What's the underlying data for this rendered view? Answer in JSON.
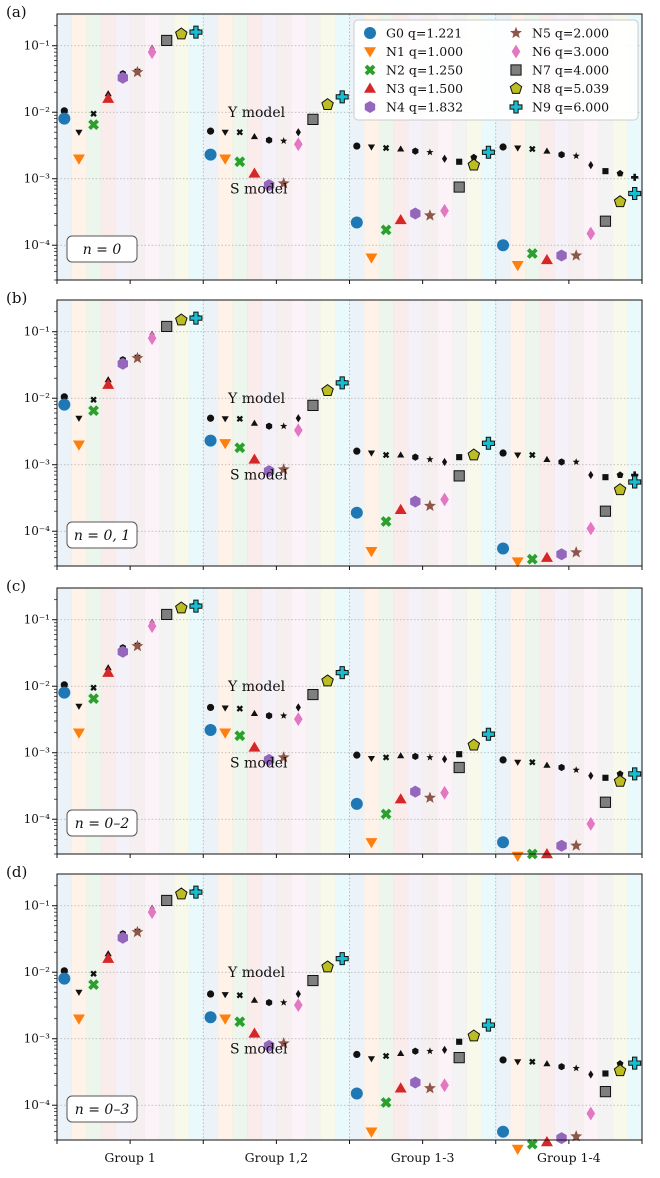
{
  "chart_data": {
    "type": "scatter",
    "y_scale": "log",
    "ylim": [
      3e-05,
      0.3
    ],
    "y_ticks": [
      {
        "value": 0.1,
        "label": "10⁻¹"
      },
      {
        "value": 0.01,
        "label": "10⁻²"
      },
      {
        "value": 0.001,
        "label": "10⁻³"
      },
      {
        "value": 0.0001,
        "label": "10⁻⁴"
      }
    ],
    "groups": [
      "Group 1",
      "Group 1,2",
      "Group 1-3",
      "Group 1-4"
    ],
    "series": [
      {
        "name": "G0 q=1.221",
        "marker": "circle",
        "color": "#1f77b4"
      },
      {
        "name": "N1 q=1.000",
        "marker": "triangle-down",
        "color": "#ff7f0e"
      },
      {
        "name": "N2 q=1.250",
        "marker": "x",
        "color": "#2ca02c"
      },
      {
        "name": "N3 q=1.500",
        "marker": "triangle-up",
        "color": "#d62728"
      },
      {
        "name": "N4 q=1.832",
        "marker": "hexagon",
        "color": "#9467bd"
      },
      {
        "name": "N5 q=2.000",
        "marker": "star",
        "color": "#8c564b"
      },
      {
        "name": "N6 q=3.000",
        "marker": "diamond",
        "color": "#e377c2"
      },
      {
        "name": "N7 q=4.000",
        "marker": "square",
        "color": "#7f7f7f"
      },
      {
        "name": "N8 q=5.039",
        "marker": "pentagon",
        "color": "#bcbd22"
      },
      {
        "name": "N9 q=6.000",
        "marker": "plus",
        "color": "#17becf"
      }
    ],
    "legend_position": "top-right (panel a)",
    "grid": "dotted major y and group separators",
    "annotations": {
      "y_model": "Y model",
      "s_model": "S model"
    },
    "panels": [
      {
        "letter": "(a)",
        "n_label": "n = 0",
        "s_model": [
          [
            0.008,
            0.002,
            0.0065,
            0.016,
            0.033,
            0.04,
            0.08,
            0.12,
            0.15,
            0.16
          ],
          [
            0.0023,
            0.002,
            0.0018,
            0.0012,
            0.0008,
            0.00085,
            0.0033,
            0.0078,
            0.013,
            0.017
          ],
          [
            0.00022,
            6.5e-05,
            0.00017,
            0.00024,
            0.0003,
            0.00028,
            0.00033,
            0.00075,
            0.0016,
            0.0025
          ],
          [
            0.0001,
            5e-05,
            7.5e-05,
            6e-05,
            7e-05,
            7e-05,
            0.00015,
            0.00023,
            0.00045,
            0.0006
          ]
        ],
        "y_model": [
          [
            0.0105,
            0.005,
            0.0095,
            0.019,
            0.038,
            0.043,
            0.09,
            0.125,
            0.155,
            0.17
          ],
          [
            0.0052,
            0.005,
            0.005,
            0.0043,
            0.0038,
            0.0037,
            0.005,
            0.0082,
            0.0135,
            0.018
          ],
          [
            0.0031,
            0.003,
            0.0029,
            0.0028,
            0.0026,
            0.0025,
            0.002,
            0.0018,
            0.0021,
            0.0024
          ],
          [
            0.003,
            0.0029,
            0.0028,
            0.0026,
            0.0023,
            0.0022,
            0.0016,
            0.0013,
            0.0012,
            0.00105
          ]
        ]
      },
      {
        "letter": "(b)",
        "n_label": "n = 0, 1",
        "s_model": [
          [
            0.008,
            0.002,
            0.0065,
            0.016,
            0.033,
            0.04,
            0.08,
            0.12,
            0.15,
            0.16
          ],
          [
            0.0023,
            0.0021,
            0.0018,
            0.0012,
            0.0008,
            0.00085,
            0.0033,
            0.0078,
            0.013,
            0.017
          ],
          [
            0.00019,
            5e-05,
            0.00014,
            0.00021,
            0.00028,
            0.00024,
            0.0003,
            0.00068,
            0.0014,
            0.0021
          ],
          [
            5.5e-05,
            3.5e-05,
            3.8e-05,
            4e-05,
            4.5e-05,
            4.8e-05,
            0.00011,
            0.0002,
            0.00042,
            0.00055
          ]
        ],
        "y_model": [
          [
            0.0105,
            0.005,
            0.0095,
            0.019,
            0.038,
            0.043,
            0.09,
            0.125,
            0.155,
            0.17
          ],
          [
            0.005,
            0.0049,
            0.0049,
            0.0042,
            0.0038,
            0.0038,
            0.005,
            0.0082,
            0.0135,
            0.018
          ],
          [
            0.0016,
            0.0015,
            0.0014,
            0.0014,
            0.0013,
            0.0012,
            0.0011,
            0.0013,
            0.0015,
            0.0022
          ],
          [
            0.0015,
            0.0014,
            0.0014,
            0.0012,
            0.0011,
            0.0011,
            0.0007,
            0.00065,
            0.0007,
            0.0007
          ]
        ]
      },
      {
        "letter": "(c)",
        "n_label": "n = 0–2",
        "s_model": [
          [
            0.008,
            0.002,
            0.0065,
            0.016,
            0.033,
            0.04,
            0.08,
            0.12,
            0.15,
            0.16
          ],
          [
            0.0022,
            0.002,
            0.0018,
            0.0012,
            0.00078,
            0.00085,
            0.0032,
            0.0075,
            0.012,
            0.016
          ],
          [
            0.00017,
            4.5e-05,
            0.00012,
            0.0002,
            0.00026,
            0.00021,
            0.00025,
            0.0006,
            0.0013,
            0.0019
          ],
          [
            4.5e-05,
            2.8e-05,
            3e-05,
            3e-05,
            4e-05,
            4e-05,
            8.5e-05,
            0.00018,
            0.00037,
            0.00048
          ]
        ],
        "y_model": [
          [
            0.0105,
            0.005,
            0.0095,
            0.019,
            0.038,
            0.043,
            0.09,
            0.125,
            0.155,
            0.17
          ],
          [
            0.0048,
            0.0047,
            0.0046,
            0.0039,
            0.0036,
            0.0036,
            0.0048,
            0.008,
            0.013,
            0.017
          ],
          [
            0.00092,
            0.00082,
            0.00085,
            0.0009,
            0.00088,
            0.00085,
            0.0008,
            0.00095,
            0.0013,
            0.0018
          ],
          [
            0.00078,
            0.00072,
            0.00072,
            0.00065,
            0.0006,
            0.00055,
            0.00045,
            0.00042,
            0.00048,
            0.0005
          ]
        ]
      },
      {
        "letter": "(d)",
        "n_label": "n = 0–3",
        "s_model": [
          [
            0.008,
            0.002,
            0.0065,
            0.016,
            0.033,
            0.04,
            0.08,
            0.12,
            0.15,
            0.16
          ],
          [
            0.0021,
            0.002,
            0.0018,
            0.0012,
            0.00078,
            0.00085,
            0.0032,
            0.0075,
            0.012,
            0.016
          ],
          [
            0.00015,
            4e-05,
            0.00011,
            0.00018,
            0.00022,
            0.00018,
            0.0002,
            0.00052,
            0.0011,
            0.0016
          ],
          [
            4e-05,
            2.2e-05,
            2.6e-05,
            2.8e-05,
            3.2e-05,
            3.4e-05,
            7.5e-05,
            0.00016,
            0.00033,
            0.00043
          ]
        ],
        "y_model": [
          [
            0.0105,
            0.005,
            0.0095,
            0.019,
            0.038,
            0.043,
            0.09,
            0.125,
            0.155,
            0.17
          ],
          [
            0.0047,
            0.0046,
            0.0045,
            0.0038,
            0.0035,
            0.0035,
            0.0047,
            0.0079,
            0.0125,
            0.0165
          ],
          [
            0.00058,
            0.0005,
            0.00055,
            0.0006,
            0.00065,
            0.00065,
            0.00068,
            0.0009,
            0.0012,
            0.0016
          ],
          [
            0.00048,
            0.00045,
            0.00045,
            0.00042,
            0.00038,
            0.00036,
            0.00029,
            0.0003,
            0.00042,
            0.00045
          ]
        ]
      }
    ]
  }
}
